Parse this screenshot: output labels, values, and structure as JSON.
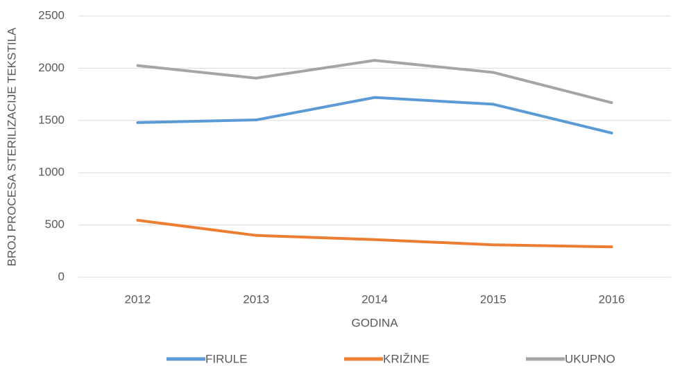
{
  "chart_data": {
    "type": "line",
    "x_label": "GODINA",
    "y_label": "BROJ PROCESA STERILIZACIJE TEKSTILA",
    "categories": [
      "2012",
      "2013",
      "2014",
      "2015",
      "2016"
    ],
    "series": [
      {
        "name": "FIRULE",
        "color": "#5b9bd5",
        "values": [
          1480,
          1505,
          1720,
          1655,
          1380
        ]
      },
      {
        "name": "KRIŽINE",
        "color": "#ed7d31",
        "values": [
          545,
          400,
          360,
          310,
          290
        ]
      },
      {
        "name": "UKUPNO",
        "color": "#a5a5a5",
        "values": [
          2025,
          1905,
          2075,
          1960,
          1670
        ]
      }
    ],
    "ylim": [
      0,
      2500
    ],
    "yticks": [
      0,
      500,
      1000,
      1500,
      2000,
      2500
    ],
    "grid": true,
    "legend": "bottom"
  }
}
